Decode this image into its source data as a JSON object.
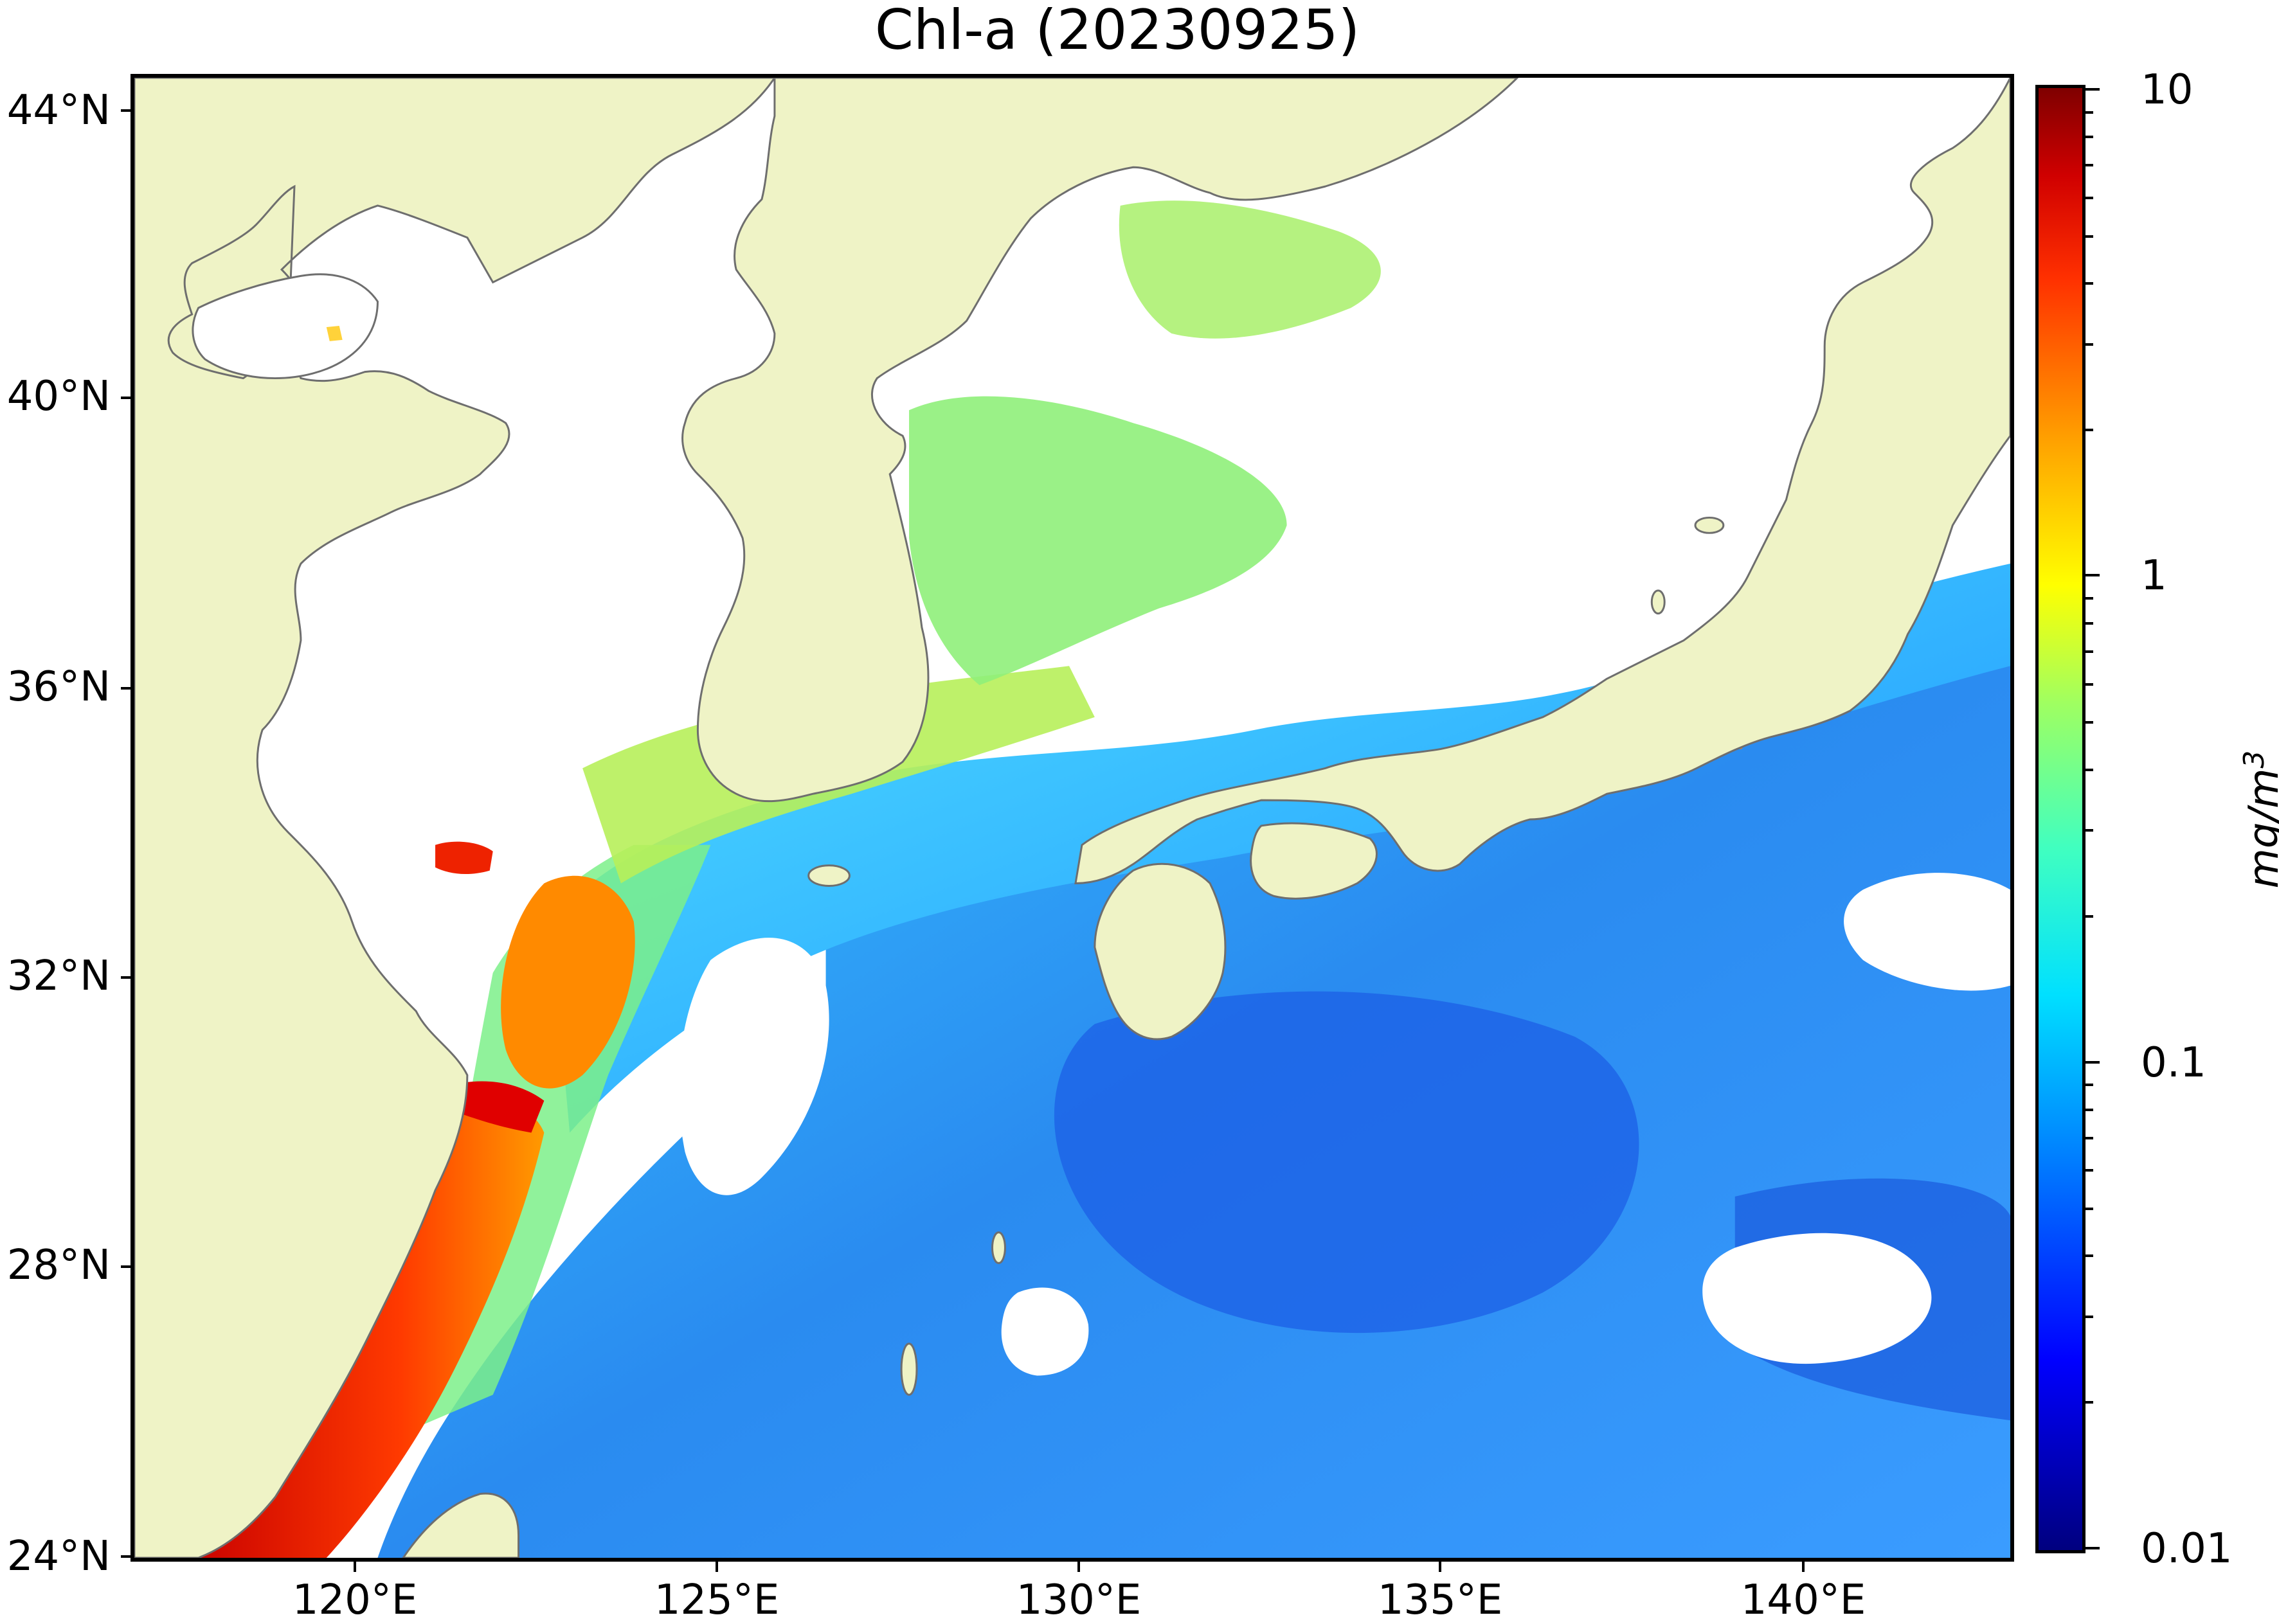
{
  "title": "Chl-a (20230925)",
  "map": {
    "region": "East China Sea / Sea of Japan / NW Pacific",
    "lon_range": [
      117,
      143
    ],
    "lat_range": [
      24,
      44.5
    ],
    "colors": {
      "land": "#eff3c6",
      "coastline": "#6e6e6e",
      "cloud_no_data": "#ffffff",
      "frame": "#000000"
    },
    "x_ticks": [
      "120°E",
      "125°E",
      "130°E",
      "135°E",
      "140°E"
    ],
    "y_ticks": [
      "44°N",
      "40°N",
      "36°N",
      "32°N",
      "28°N",
      "24°N"
    ]
  },
  "colorbar": {
    "scale": "log",
    "range": [
      0.01,
      10
    ],
    "tick_labels": [
      "10",
      "1",
      "0.1",
      "0.01"
    ],
    "unit_label": "mg/m",
    "unit_superscript": "3",
    "colormap": "jet"
  }
}
